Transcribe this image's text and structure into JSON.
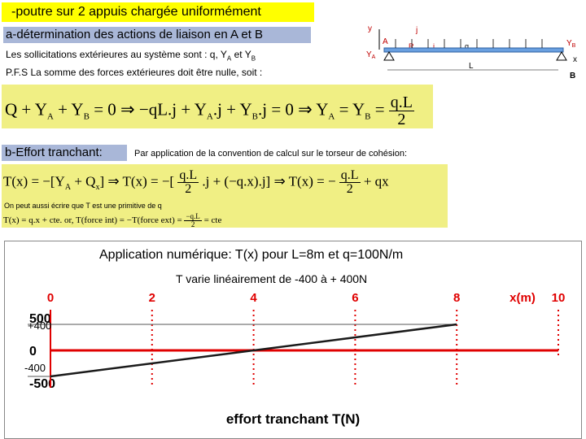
{
  "title": "-poutre sur 2 appuis chargée uniformément",
  "section_a": "a-détermination des actions de liaison en A et B",
  "line1": "Les sollicitations extérieures  au système sont : q, Y",
  "line1_subA": "A",
  "line1_mid": " et Y",
  "line1_subB": "B",
  "line2": "P.F.S La somme des forces extérieures doit être nulle, soit :",
  "section_b": "b-Effort tranchant:",
  "convention": "Par application de la convention de calcul sur le torseur de cohésion:",
  "primitive_note": "On peut aussi écrire que T est une primitive de q",
  "diagram": {
    "y": "y",
    "A": "A",
    "YA": "Y",
    "YA_sub": "A",
    "YB": "Y",
    "YB_sub": "B",
    "B": "B",
    "x": "x",
    "L": "L",
    "q": "q",
    "R": "R",
    "i": "i",
    "j": "j"
  },
  "application": "Application numérique: T(x) pour L=8m et   q=100N/m",
  "variation": "T varie linéairement de -400 à + 400N",
  "chart_data": {
    "type": "line",
    "x_axis_label": "x(m)",
    "x_ticks": [
      "0",
      "2",
      "4",
      "6",
      "8",
      "10"
    ],
    "y_ticks": [
      "500",
      "0",
      "-500"
    ],
    "xlim": [
      0,
      10
    ],
    "ylim": [
      -500,
      500
    ],
    "series": [
      {
        "x": [
          0,
          8
        ],
        "y": [
          -400,
          400
        ],
        "color": "#1a1a1a"
      }
    ],
    "zero_line": {
      "x": [
        0,
        10
      ],
      "y": [
        0,
        0
      ],
      "color": "#e00000"
    },
    "annotations": [
      "+400",
      "-400"
    ],
    "title": "effort tranchant T(N)",
    "tick_color": "#e00000",
    "axis_color": "#e00000"
  }
}
